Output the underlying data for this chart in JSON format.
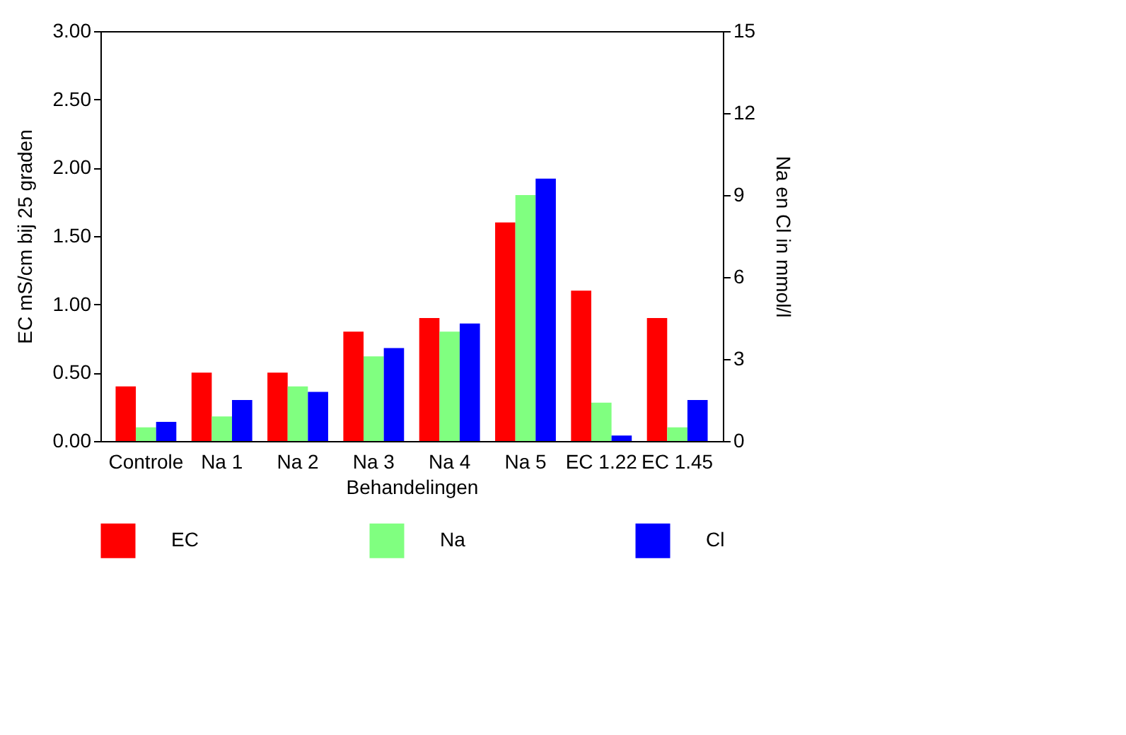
{
  "chart_data": {
    "type": "bar",
    "xlabel": "Behandelingen",
    "ylabel": "EC mS/cm bij 25 graden",
    "y2label": "Na en Cl in mmol/l",
    "categories": [
      "Controle",
      "Na 1",
      "Na 2",
      "Na 3",
      "Na 4",
      "Na 5",
      "EC 1.22",
      "EC 1.45"
    ],
    "series": [
      {
        "name": "EC",
        "color": "#ff0000",
        "values": [
          0.4,
          0.5,
          0.5,
          0.8,
          0.9,
          1.6,
          1.1,
          0.9
        ]
      },
      {
        "name": "Na",
        "color": "#80ff80",
        "axis": "y2",
        "values": [
          0.5,
          0.9,
          2.0,
          3.1,
          4.0,
          9.0,
          1.4,
          0.5
        ]
      },
      {
        "name": "Cl",
        "color": "#0000ff",
        "axis": "y2",
        "values": [
          0.7,
          1.5,
          1.8,
          3.4,
          4.3,
          9.6,
          0.2,
          1.5
        ]
      }
    ],
    "ylim": [
      0,
      3
    ],
    "yticks": [
      {
        "value": 0,
        "label": "0.00"
      },
      {
        "value": 0.5,
        "label": "0.50"
      },
      {
        "value": 1,
        "label": "1.00"
      },
      {
        "value": 1.5,
        "label": "1.50"
      },
      {
        "value": 2,
        "label": "2.00"
      },
      {
        "value": 2.5,
        "label": "2.50"
      },
      {
        "value": 3,
        "label": "3.00"
      }
    ],
    "y2lim": [
      0,
      15
    ],
    "y2ticks": [
      0,
      3,
      6,
      9,
      12,
      15
    ],
    "grid": false,
    "legend": "bottom"
  }
}
